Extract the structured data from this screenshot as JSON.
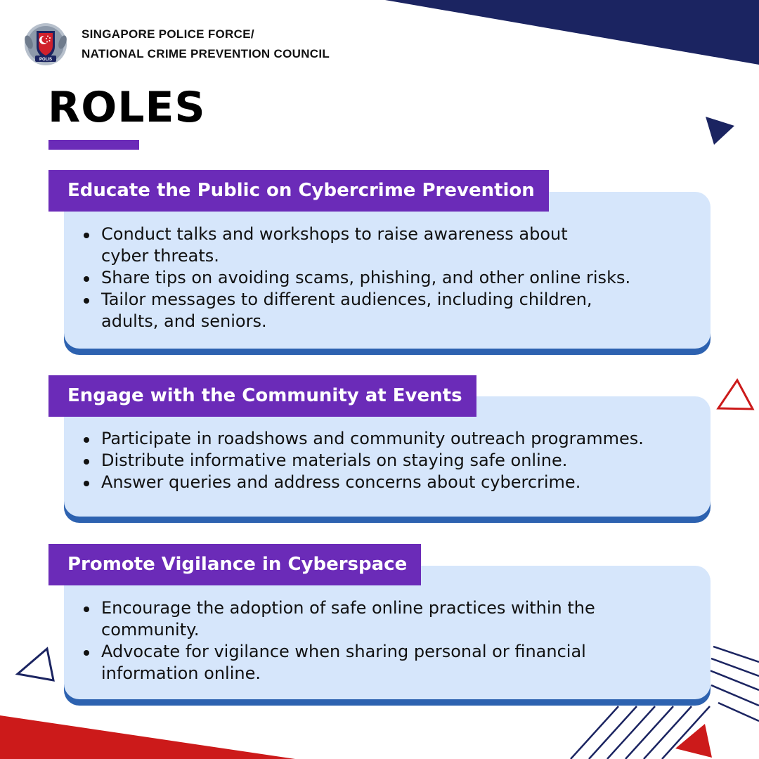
{
  "organization": {
    "line1": "SINGAPORE POLICE FORCE/",
    "line2": "NATIONAL CRIME PREVENTION COUNCIL",
    "crest_text": "POLIS"
  },
  "page_title": "ROLES",
  "colors": {
    "purple": "#6b2bb8",
    "card_bg": "#d6e6fb",
    "card_shadow": "#2d62b0",
    "navy": "#1b2461",
    "red": "#cc1a1a"
  },
  "sections": [
    {
      "title": "Educate the Public on Cybercrime Prevention",
      "bullets": [
        "Conduct talks and workshops to raise awareness about cyber threats.",
        "Share tips on avoiding scams, phishing, and other online risks.",
        "Tailor messages to different audiences, including children, adults, and seniors."
      ]
    },
    {
      "title": "Engage with the Community at Events",
      "bullets": [
        "Participate in roadshows and community outreach programmes.",
        "Distribute informative materials on staying safe online.",
        "Answer queries and address concerns about cybercrime."
      ]
    },
    {
      "title": "Promote Vigilance in Cyberspace",
      "bullets": [
        "Encourage the adoption of safe online practices within the community.",
        "Advocate for vigilance when sharing personal or financial information online."
      ]
    }
  ]
}
